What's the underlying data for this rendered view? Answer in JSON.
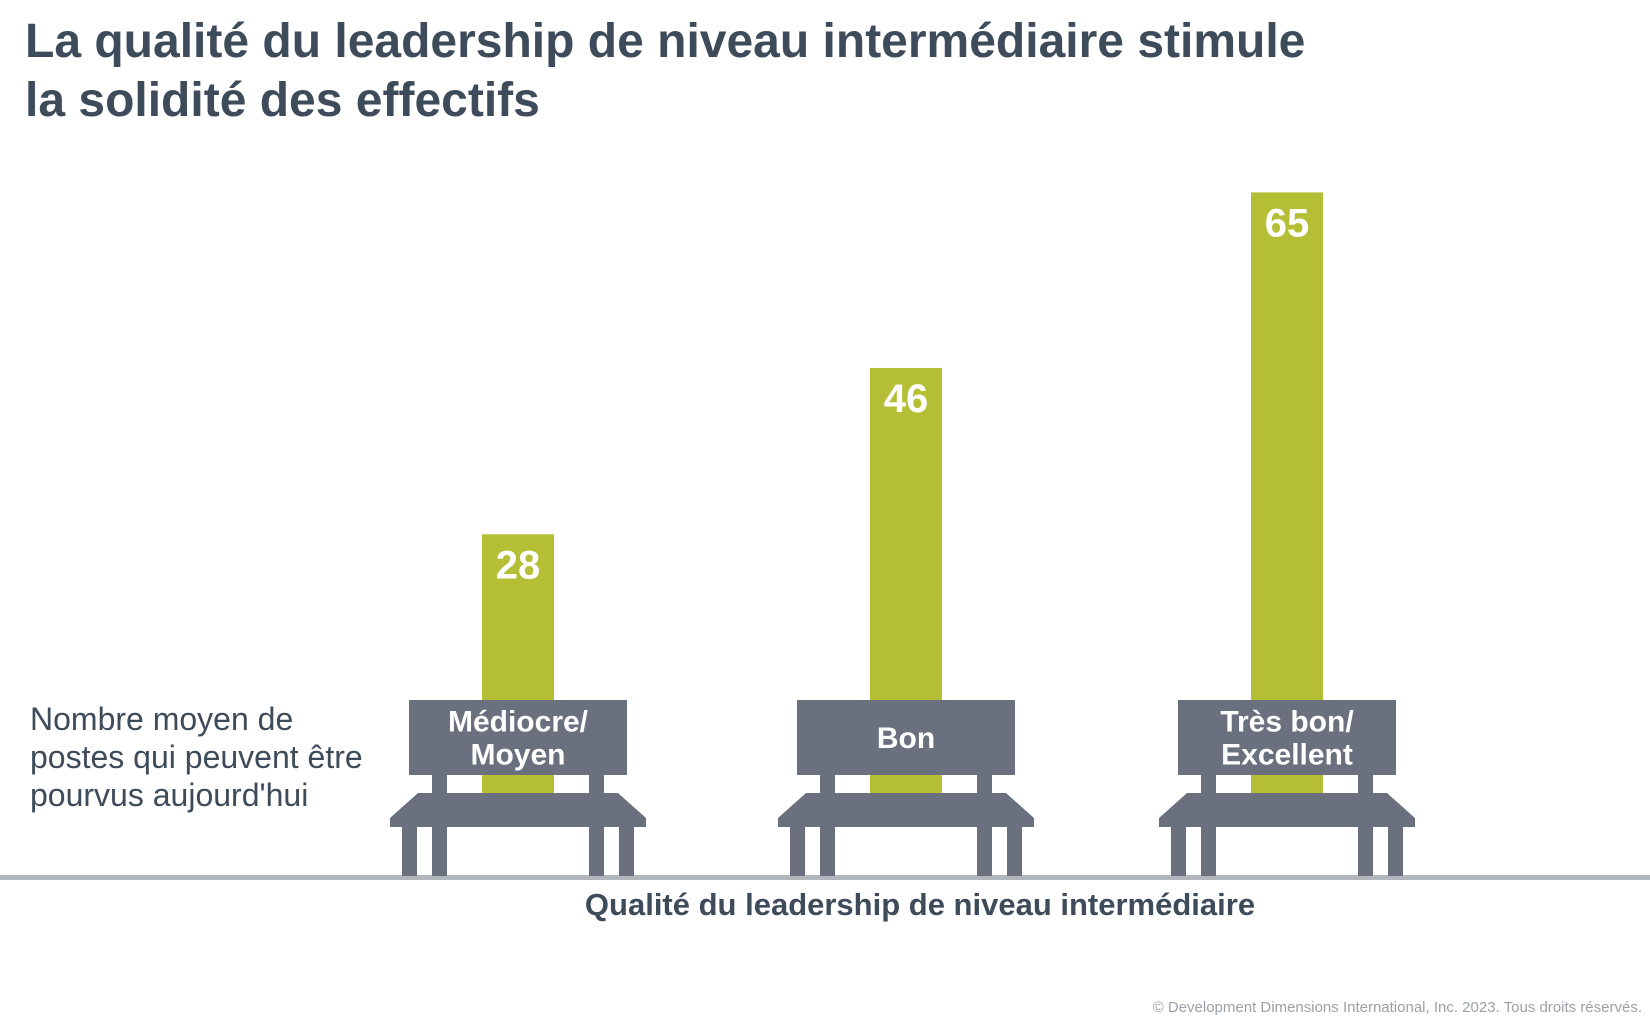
{
  "chart_data": {
    "type": "bar",
    "title_lines": [
      "La qualité du leadership de niveau intermédiaire stimule",
      "la solidité des effectifs"
    ],
    "ylabel_lines": [
      "Nombre moyen de",
      "postes qui peuvent être",
      "pourvus aujourd'hui"
    ],
    "xlabel": "Qualité du leadership de niveau intermédiaire",
    "categories": [
      [
        "Médiocre/",
        "Moyen"
      ],
      [
        "Bon"
      ],
      [
        "Très bon/",
        "Excellent"
      ]
    ],
    "values": [
      28,
      46,
      65
    ],
    "grid": false,
    "colors": {
      "bar": "#b5bf35",
      "bench": "#6a707e",
      "text": "#3d4b5a",
      "baseline": "#b2b6bd"
    }
  },
  "footer": {
    "copyright": "© Development Dimensions International, Inc. 2023. Tous droits réservés."
  }
}
